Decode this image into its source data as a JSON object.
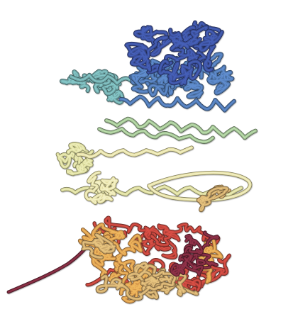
{
  "image": {
    "background": "#ffffff",
    "palette": {
      "navy": "#3a4f9a",
      "blue": "#4f76ad",
      "teal": "#6fa6a7",
      "sage": "#9fbe92",
      "pale_yellow": "#d8d89a",
      "cream": "#e6e0a6",
      "orange": "#d99a4e",
      "tan": "#c9a56a",
      "red": "#b8433a",
      "maroon": "#7a2a3e"
    },
    "icon": "protein-ribbon-structure"
  }
}
